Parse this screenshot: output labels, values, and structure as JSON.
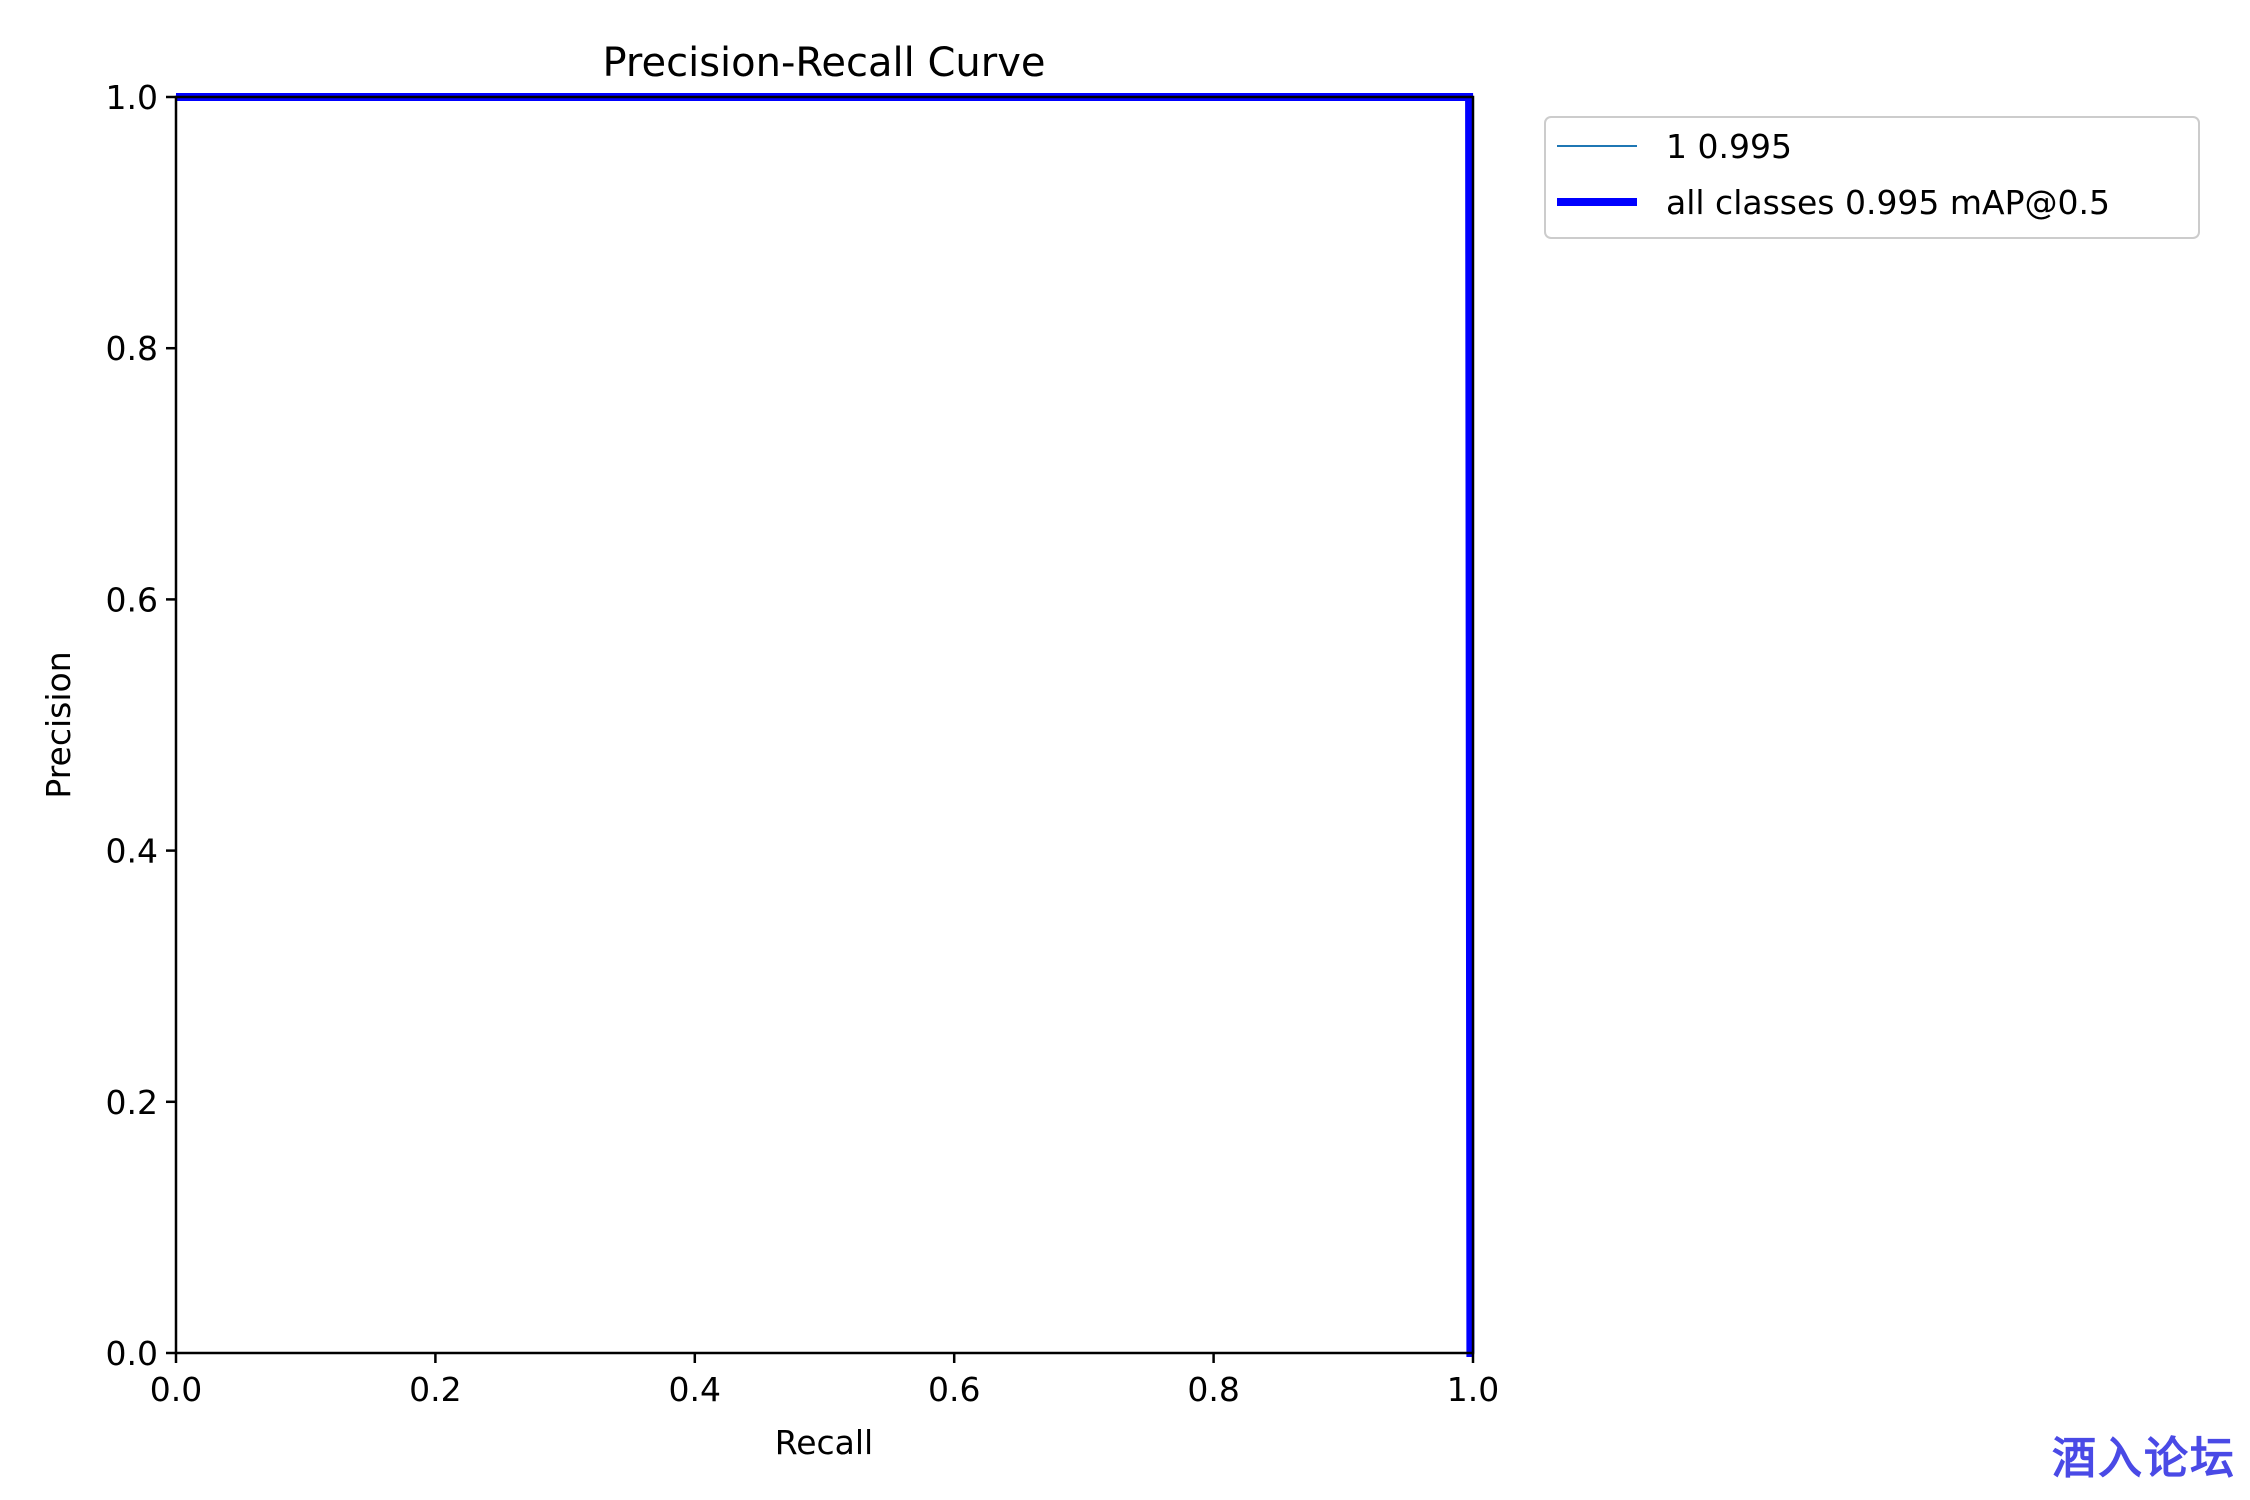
{
  "chart_data": {
    "type": "line",
    "title": "Precision-Recall Curve",
    "xlabel": "Recall",
    "ylabel": "Precision",
    "xlim": [
      0.0,
      1.0
    ],
    "ylim": [
      0.0,
      1.0
    ],
    "xticks": [
      "0.0",
      "0.2",
      "0.4",
      "0.6",
      "0.8",
      "1.0"
    ],
    "yticks": [
      "0.0",
      "0.2",
      "0.4",
      "0.6",
      "0.8",
      "1.0"
    ],
    "grid": false,
    "legend_position": "outside-upper-right",
    "series": [
      {
        "name": "1 0.995",
        "color": "#1f77b4",
        "x": [
          0.0,
          0.997,
          0.998,
          1.0
        ],
        "y": [
          1.0,
          1.0,
          0.0,
          0.0
        ]
      },
      {
        "name": "all classes 0.995 mAP@0.5",
        "color": "#0000ff",
        "x": [
          0.0,
          0.997,
          0.998,
          1.0
        ],
        "y": [
          1.0,
          1.0,
          0.0,
          0.0
        ]
      }
    ]
  },
  "watermark": {
    "text": "酒入论坛",
    "color": "#4a4ae6"
  }
}
